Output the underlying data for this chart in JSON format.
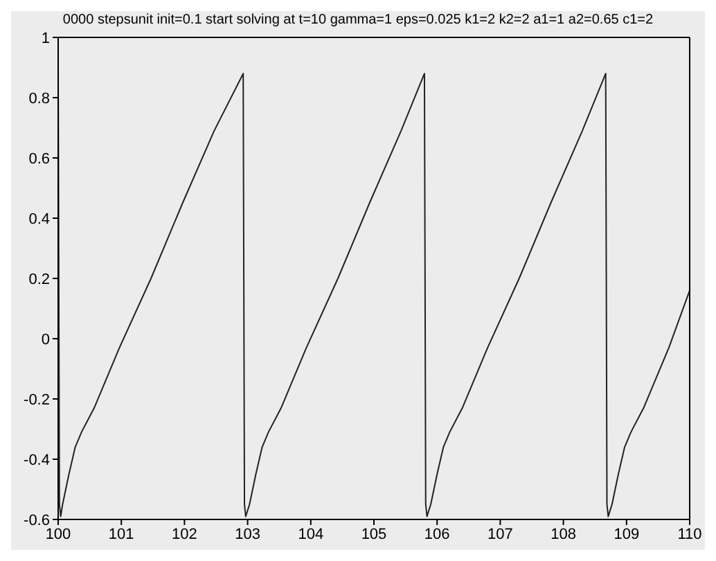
{
  "chart_data": {
    "type": "line",
    "title": "0000 stepsunit   init=0.1   start solving at t=10   gamma=1   eps=0.025   k1=2   k2=2   a1=1   a2=0.65   c1=2",
    "x": [
      100,
      100.02,
      100.04,
      100.07,
      100.17,
      100.27,
      100.37,
      100.57,
      100.97,
      101.47,
      101.97,
      102.47,
      102.93,
      102.95,
      102.97,
      103.03,
      103.13,
      103.23,
      103.33,
      103.53,
      103.93,
      104.43,
      104.93,
      105.43,
      105.8,
      105.82,
      105.84,
      105.9,
      106.0,
      106.1,
      106.2,
      106.4,
      106.8,
      107.3,
      107.8,
      108.3,
      108.67,
      108.69,
      108.71,
      108.77,
      108.87,
      108.97,
      109.07,
      109.27,
      109.67,
      110
    ],
    "series": [
      {
        "color": "#222222",
        "values": [
          0.9,
          -0.55,
          -0.59,
          -0.55,
          -0.45,
          -0.36,
          -0.31,
          -0.23,
          -0.03,
          0.2,
          0.45,
          0.69,
          0.88,
          -0.55,
          -0.59,
          -0.55,
          -0.45,
          -0.36,
          -0.31,
          -0.23,
          -0.03,
          0.2,
          0.45,
          0.69,
          0.88,
          -0.55,
          -0.59,
          -0.55,
          -0.45,
          -0.36,
          -0.31,
          -0.23,
          -0.03,
          0.2,
          0.45,
          0.69,
          0.88,
          -0.55,
          -0.59,
          -0.55,
          -0.45,
          -0.36,
          -0.31,
          -0.23,
          -0.03,
          0.16
        ]
      }
    ],
    "xlim": [
      100,
      110
    ],
    "xticks": [
      100,
      101,
      102,
      103,
      104,
      105,
      106,
      107,
      108,
      109,
      110
    ],
    "ylim": [
      -0.6,
      1
    ],
    "yticks": [
      -0.6,
      -0.4,
      -0.2,
      0,
      0.2,
      0.4,
      0.6,
      0.8,
      1
    ],
    "grid": false,
    "legend": false,
    "marker": "none",
    "line_style": "solid"
  }
}
